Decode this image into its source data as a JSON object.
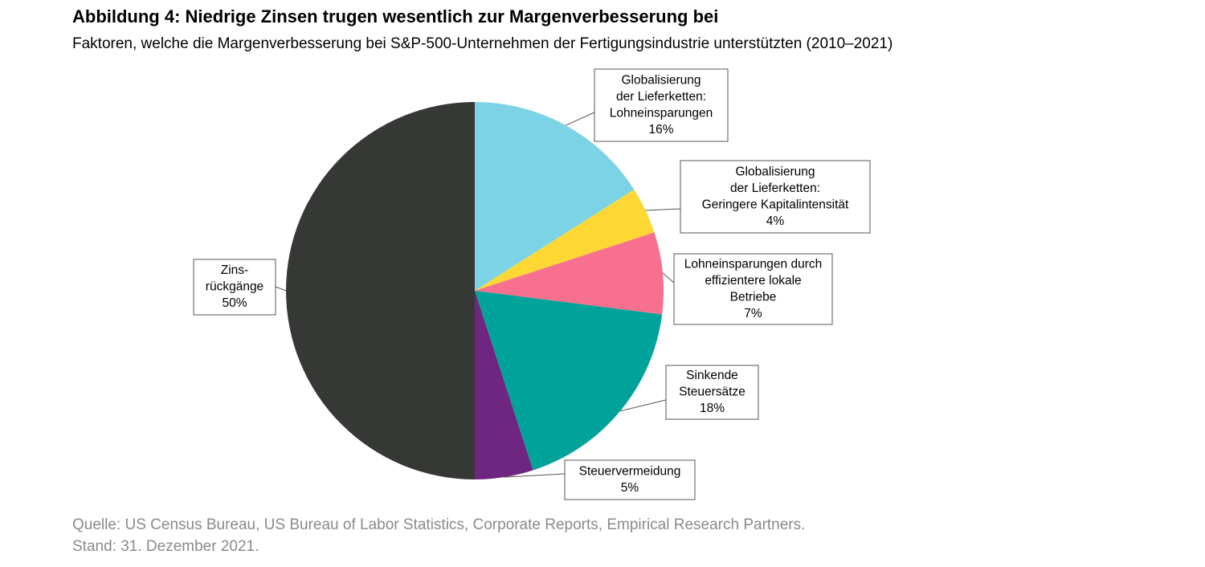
{
  "chart_data": {
    "type": "pie",
    "title": "Abbildung 4: Niedrige Zinsen trugen wesentlich zur Margenverbesserung bei",
    "subtitle": "Faktoren, welche die Margenverbesserung bei S&P-500-Unternehmen der Fertigungsindustrie unterstützten (2010–2021)",
    "categories": [
      [
        "Globalisierung",
        "der Lieferketten:",
        "Lohneinsparungen"
      ],
      [
        "Globalisierung",
        "der Lieferketten:",
        "Geringere Kapitalintensität"
      ],
      [
        "Lohneinsparungen durch",
        "effizientere lokale",
        "Betriebe"
      ],
      [
        "Sinkende",
        "Steuersätze"
      ],
      [
        "Steuervermeidung"
      ],
      [
        "Zins-",
        "rückgänge"
      ]
    ],
    "values": [
      16,
      4,
      7,
      18,
      5,
      50
    ],
    "value_labels": [
      "16%",
      "4%",
      "7%",
      "18%",
      "5%",
      "50%"
    ],
    "colors": [
      "#7dd3e6",
      "#fdd835",
      "#f8708f",
      "#00a39a",
      "#6e2680",
      "#363835"
    ],
    "source": [
      "Quelle: US Census Bureau, US Bureau of Labor Statistics, Corporate Reports, Empirical Research Partners.",
      "Stand: 31. Dezember 2021."
    ]
  }
}
